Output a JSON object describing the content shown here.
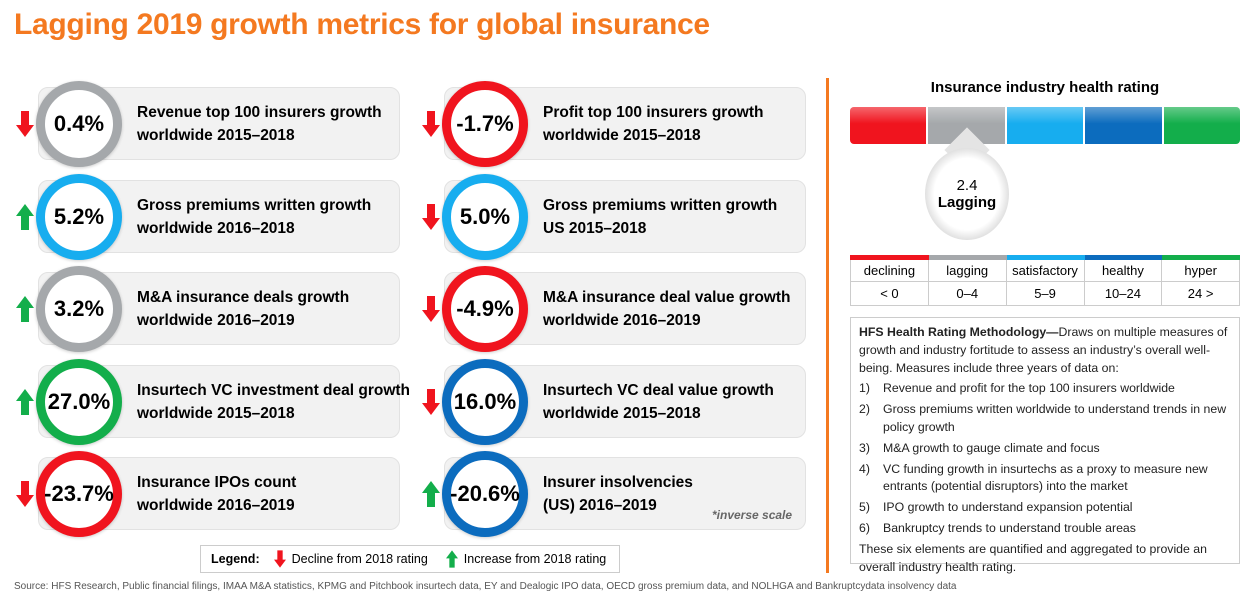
{
  "title": "Lagging 2019 growth metrics for global insurance",
  "colors": {
    "declining": "#F0141E",
    "lagging": "#A5A8AB",
    "satisfactory": "#17ADEF",
    "healthy": "#0C6CBE",
    "hyper": "#13AE4B",
    "accent": "#F47920",
    "down_arrow": "#F0141E",
    "up_arrow": "#13AE4B"
  },
  "metrics": [
    {
      "value": "0.4%",
      "line1": "Revenue top 100 insurers growth",
      "line2": "worldwide 2015–2018",
      "trend": "down",
      "ring": "lagging"
    },
    {
      "value": "-1.7%",
      "line1": "Profit top 100 insurers growth",
      "line2": "worldwide 2015–2018",
      "trend": "down",
      "ring": "declining"
    },
    {
      "value": "5.2%",
      "line1": "Gross premiums written growth",
      "line2": "worldwide 2016–2018",
      "trend": "up",
      "ring": "satisfactory"
    },
    {
      "value": "5.0%",
      "line1": "Gross premiums written growth",
      "line2": "US 2015–2018",
      "trend": "down",
      "ring": "satisfactory"
    },
    {
      "value": "3.2%",
      "line1": "M&A insurance deals growth",
      "line2": "worldwide 2016–2019",
      "trend": "up",
      "ring": "lagging"
    },
    {
      "value": "-4.9%",
      "line1": "M&A insurance deal value growth",
      "line2": "worldwide 2016–2019",
      "trend": "down",
      "ring": "declining"
    },
    {
      "value": "27.0%",
      "line1": "Insurtech VC investment deal growth",
      "line2": "worldwide 2015–2018",
      "trend": "up",
      "ring": "hyper"
    },
    {
      "value": "16.0%",
      "line1": "Insurtech VC deal value growth",
      "line2": "worldwide 2015–2018",
      "trend": "down",
      "ring": "healthy"
    },
    {
      "value": "-23.7%",
      "line1": "Insurance IPOs count",
      "line2": "worldwide 2016–2019",
      "trend": "down",
      "ring": "declining"
    },
    {
      "value": "-20.6%",
      "line1": "Insurer insolvencies",
      "line2": "(US) 2016–2019",
      "trend": "up",
      "ring": "healthy",
      "note": "*inverse scale"
    }
  ],
  "rating": {
    "title": "Insurance industry health rating",
    "score": "2.4",
    "label": "Lagging",
    "levels": [
      {
        "key": "declining",
        "name": "declining",
        "range": "< 0"
      },
      {
        "key": "lagging",
        "name": "lagging",
        "range": "0–4"
      },
      {
        "key": "satisfactory",
        "name": "satisfactory",
        "range": "5–9"
      },
      {
        "key": "healthy",
        "name": "healthy",
        "range": "10–24"
      },
      {
        "key": "hyper",
        "name": "hyper",
        "range": "24 >"
      }
    ]
  },
  "methodology": {
    "heading": "HFS Health Rating Methodology—",
    "intro": "Draws on multiple measures of growth and industry fortitude to assess an industry’s overall well-being. Measures include three years of data on:",
    "items": [
      {
        "n": "1)",
        "t": "Revenue and profit for the top 100 insurers worldwide"
      },
      {
        "n": "2)",
        "t": "Gross premiums written worldwide to understand trends in new policy growth"
      },
      {
        "n": "3)",
        "t": "M&A growth to gauge climate and focus"
      },
      {
        "n": "4)",
        "t": "VC funding growth in insurtechs as a proxy to measure new entrants (potential disruptors) into the market"
      },
      {
        "n": "5)",
        "t": "IPO growth to understand expansion potential"
      },
      {
        "n": "6)",
        "t": "Bankruptcy trends to understand trouble areas"
      }
    ],
    "outro": "These six elements are quantified and aggregated to provide an overall industry health rating."
  },
  "legend": {
    "label": "Legend:",
    "down": "Decline from 2018 rating",
    "up": "Increase from 2018 rating"
  },
  "source": "Source: HFS Research, Public financial filings, IMAA M&A statistics, KPMG and Pitchbook insurtech data, EY and Dealogic IPO data, OECD gross premium data, and NOLHGA and Bankruptcydata insolvency data"
}
